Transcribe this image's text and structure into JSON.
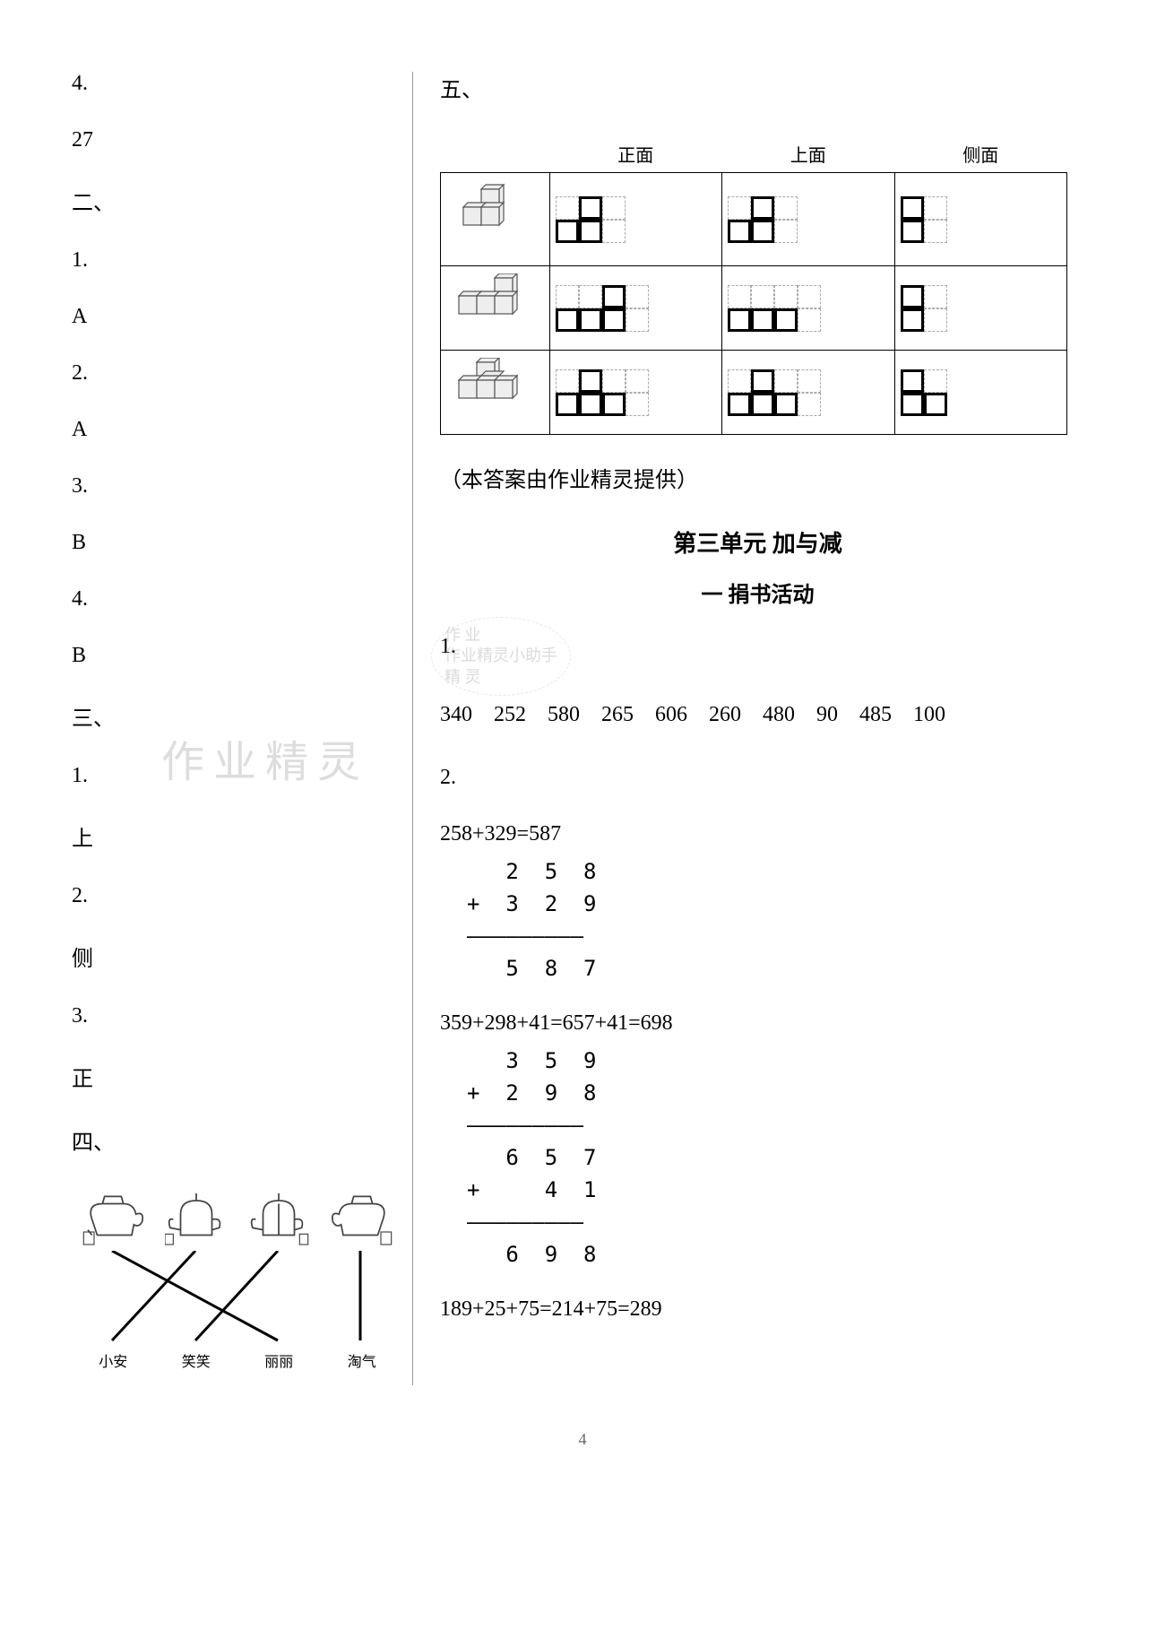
{
  "left": {
    "items": [
      "4.",
      "27",
      "二、",
      "1.",
      "A",
      "2.",
      "A",
      "3.",
      "B",
      "4.",
      "B",
      "三、",
      "1.",
      "上",
      "2.",
      "侧",
      "3.",
      "正",
      "四、"
    ],
    "watermark": "作业精灵",
    "match": {
      "names": [
        "小安",
        "笑笑",
        "丽丽",
        "淘气"
      ]
    }
  },
  "right": {
    "section_label": "五、",
    "table_headers": [
      "",
      "正面",
      "上面",
      "侧面"
    ],
    "table_rows": [
      {
        "front": [
          [
            0,
            1,
            0
          ],
          [
            1,
            1,
            0
          ]
        ],
        "top": [
          [
            0,
            1,
            0
          ],
          [
            1,
            1,
            0
          ]
        ],
        "side": [
          [
            1,
            0
          ],
          [
            1,
            0
          ]
        ]
      },
      {
        "front": [
          [
            0,
            0,
            1,
            0
          ],
          [
            1,
            1,
            1,
            0
          ]
        ],
        "top": [
          [
            0,
            0,
            0,
            0
          ],
          [
            1,
            1,
            1,
            0
          ]
        ],
        "side": [
          [
            1,
            0
          ],
          [
            1,
            0
          ]
        ]
      },
      {
        "front": [
          [
            0,
            1,
            0,
            0
          ],
          [
            1,
            1,
            1,
            0
          ]
        ],
        "top": [
          [
            0,
            1,
            0,
            0
          ],
          [
            1,
            1,
            1,
            0
          ]
        ],
        "side": [
          [
            1,
            0
          ],
          [
            1,
            1
          ]
        ]
      }
    ],
    "note": "（本答案由作业精灵提供）",
    "unit_title": "第三单元 加与减",
    "subtitle": "一 捐书活动",
    "q1_label": "1.",
    "q1_numbers": "340　252　580　265　606　260　480　90　485　100",
    "q2_label": "2.",
    "eq1": "258+329=587",
    "vert1": "   2  5  8\n+  3  2  9\n—————————\n   5  8  7",
    "eq2": "359+298+41=657+41=698",
    "vert2": "   3  5  9\n+  2  9  8\n—————————\n   6  5  7\n+     4  1\n—————————\n   6  9  8",
    "eq3": "189+25+75=214+75=289",
    "stamp": "作 业\n作业精灵小助手\n精 灵"
  },
  "page_number": "4"
}
